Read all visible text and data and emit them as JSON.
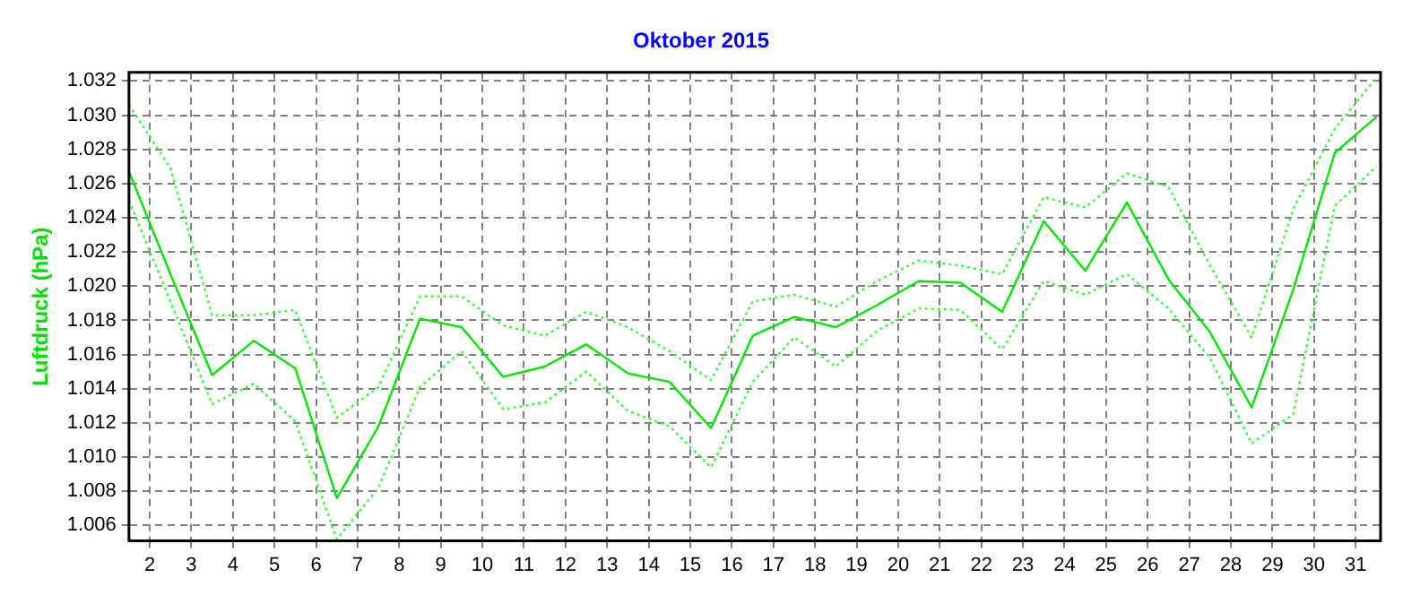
{
  "chart_data": {
    "type": "line",
    "title": "Oktober 2015",
    "ylabel": "Luftdruck (hPa)",
    "x": [
      1.5,
      2.5,
      3.5,
      4.5,
      5.5,
      6.5,
      7.5,
      8.5,
      9.5,
      10.5,
      11.5,
      12.5,
      13.5,
      14.5,
      15.5,
      16.5,
      17.5,
      18.5,
      19.5,
      20.5,
      21.5,
      22.5,
      23.5,
      24.5,
      25.5,
      26.5,
      27.5,
      28.5,
      29.5,
      30.5,
      31.5
    ],
    "series": [
      {
        "color": "#00e600",
        "line_style": "solid",
        "values": [
          1.0267,
          1.0207,
          1.0148,
          1.0168,
          1.0152,
          1.0076,
          1.0118,
          1.0181,
          1.0176,
          1.0147,
          1.0153,
          1.0166,
          1.0149,
          1.0144,
          1.0117,
          1.0171,
          1.0182,
          1.0176,
          1.0189,
          1.0203,
          1.0202,
          1.0185,
          1.0238,
          1.0209,
          1.0249,
          1.0204,
          1.0173,
          1.0129,
          1.0198,
          1.0278,
          1.0299
        ]
      },
      {
        "color": "#33ff33",
        "line_style": "dotted",
        "values": [
          1.0306,
          1.0269,
          1.0183,
          1.0183,
          1.0186,
          1.0123,
          1.0141,
          1.0194,
          1.0194,
          1.0177,
          1.0171,
          1.0185,
          1.0176,
          1.0162,
          1.0145,
          1.0191,
          1.0195,
          1.0188,
          1.0203,
          1.0215,
          1.0212,
          1.0207,
          1.0252,
          1.0246,
          1.0266,
          1.0258,
          1.0212,
          1.017,
          1.0245,
          1.0292,
          1.0322
        ]
      },
      {
        "color": "#33ff33",
        "line_style": "dotted",
        "values": [
          1.025,
          1.0191,
          1.0131,
          1.0143,
          1.0121,
          1.0052,
          1.0082,
          1.0141,
          1.0162,
          1.0128,
          1.0132,
          1.015,
          1.0127,
          1.0118,
          1.0094,
          1.0144,
          1.017,
          1.0153,
          1.0174,
          1.0187,
          1.0186,
          1.0163,
          1.0203,
          1.0195,
          1.0207,
          1.0187,
          1.0158,
          1.0108,
          1.0125,
          1.0247,
          1.027
        ]
      }
    ],
    "xlim": [
      1.5,
      31.6
    ],
    "xticks": [
      2,
      3,
      4,
      5,
      6,
      7,
      8,
      9,
      10,
      11,
      12,
      13,
      14,
      15,
      16,
      17,
      18,
      19,
      20,
      21,
      22,
      23,
      24,
      25,
      26,
      27,
      28,
      29,
      30,
      31
    ],
    "ylim": [
      1.0051,
      1.0325
    ],
    "yticks": [
      {
        "value": 1.006,
        "label": "1.006"
      },
      {
        "value": 1.008,
        "label": "1.008"
      },
      {
        "value": 1.01,
        "label": "1.010"
      },
      {
        "value": 1.012,
        "label": "1.012"
      },
      {
        "value": 1.014,
        "label": "1.014"
      },
      {
        "value": 1.016,
        "label": "1.016"
      },
      {
        "value": 1.018,
        "label": "1.018"
      },
      {
        "value": 1.02,
        "label": "1.020"
      },
      {
        "value": 1.022,
        "label": "1.022"
      },
      {
        "value": 1.024,
        "label": "1.024"
      },
      {
        "value": 1.026,
        "label": "1.026"
      },
      {
        "value": 1.028,
        "label": "1.028"
      },
      {
        "value": 1.03,
        "label": "1.030"
      },
      {
        "value": 1.032,
        "label": "1.032"
      }
    ],
    "grid": true,
    "legend": false,
    "marker": "none"
  }
}
